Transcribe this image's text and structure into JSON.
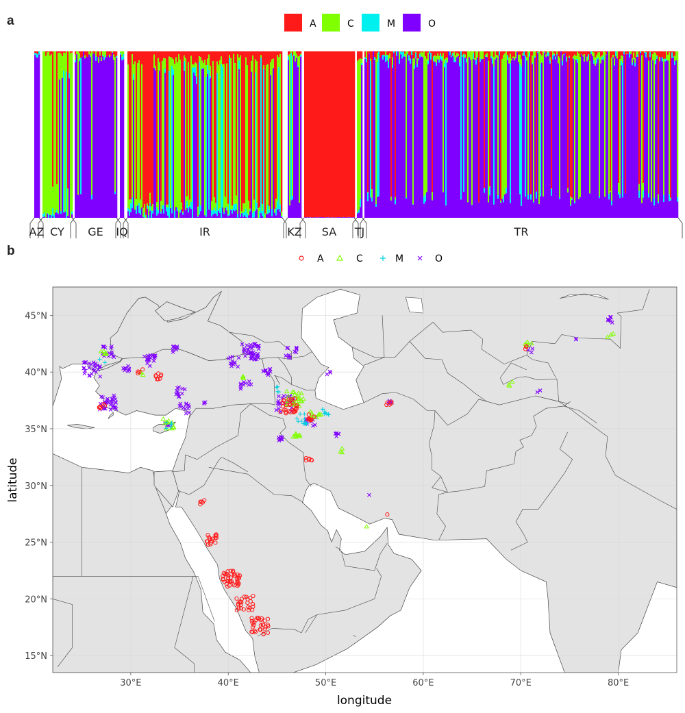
{
  "panel_a": {
    "letter": "a",
    "legend": [
      {
        "label": "A",
        "color": "#ff1a1a"
      },
      {
        "label": "C",
        "color": "#80ff00"
      },
      {
        "label": "M",
        "color": "#00f0f0"
      },
      {
        "label": "O",
        "color": "#8000ff"
      }
    ],
    "groups": [
      {
        "label": "AZ",
        "dominant": "O",
        "mix": {
          "A": 0.02,
          "C": 0.05,
          "M": 0.03,
          "O": 0.9
        }
      },
      {
        "label": "CY",
        "dominant": "C",
        "mix": {
          "A": 0.05,
          "C": 0.8,
          "M": 0.05,
          "O": 0.1
        }
      },
      {
        "label": "GE",
        "dominant": "O",
        "mix": {
          "A": 0.08,
          "C": 0.05,
          "M": 0.02,
          "O": 0.85
        }
      },
      {
        "label": "IQ",
        "dominant": "O",
        "mix": {
          "A": 0.1,
          "C": 0.05,
          "M": 0.05,
          "O": 0.8
        }
      },
      {
        "label": "IR",
        "dominant": "mixed",
        "mix": {
          "A": 0.35,
          "C": 0.3,
          "M": 0.15,
          "O": 0.2
        }
      },
      {
        "label": "KZ",
        "dominant": "O",
        "mix": {
          "A": 0.05,
          "C": 0.25,
          "M": 0.05,
          "O": 0.65
        }
      },
      {
        "label": "SA",
        "dominant": "A",
        "mix": {
          "A": 0.98,
          "C": 0.0,
          "M": 0.0,
          "O": 0.02
        }
      },
      {
        "label": "TJ",
        "dominant": "mixed",
        "mix": {
          "A": 0.3,
          "C": 0.3,
          "M": 0.1,
          "O": 0.3
        }
      },
      {
        "label": "TR",
        "dominant": "O",
        "mix": {
          "A": 0.1,
          "C": 0.15,
          "M": 0.05,
          "O": 0.7
        }
      }
    ]
  },
  "panel_b": {
    "letter": "b",
    "legend": [
      {
        "label": "A",
        "symbol": "circle",
        "color": "#ff1a1a"
      },
      {
        "label": "C",
        "symbol": "triangle",
        "color": "#80ff00"
      },
      {
        "label": "M",
        "symbol": "plus",
        "color": "#00d0e0"
      },
      {
        "label": "O",
        "symbol": "cross",
        "color": "#8000ff"
      }
    ]
  },
  "chart_data": [
    {
      "type": "bar",
      "subtype": "stacked ancestry proportions per individual",
      "categories": [
        "AZ",
        "CY",
        "GE",
        "IQ",
        "IR",
        "KZ",
        "SA",
        "TJ",
        "TR"
      ],
      "series_names": [
        "A",
        "C",
        "M",
        "O"
      ],
      "ylim": [
        0,
        1
      ],
      "legend_position": "top"
    },
    {
      "type": "scatter",
      "title": "",
      "xlabel": "longitude",
      "ylabel": "latitude",
      "xlim": [
        22,
        86
      ],
      "ylim": [
        13.5,
        47.5
      ],
      "x_ticks": [
        "30°E",
        "40°E",
        "50°E",
        "60°E",
        "70°E",
        "80°E"
      ],
      "x_tick_values": [
        30,
        40,
        50,
        60,
        70,
        80
      ],
      "y_ticks": [
        "15°N",
        "20°N",
        "25°N",
        "30°N",
        "35°N",
        "40°N",
        "45°N"
      ],
      "y_tick_values": [
        15,
        20,
        25,
        30,
        35,
        40,
        45
      ],
      "grid": true,
      "legend_position": "top",
      "series": [
        {
          "name": "A",
          "clusters": [
            {
              "lon": 27.0,
              "lat": 37.0,
              "n": 6
            },
            {
              "lon": 32.8,
              "lat": 39.6,
              "n": 8
            },
            {
              "lon": 31.0,
              "lat": 40.0,
              "n": 4
            },
            {
              "lon": 46.2,
              "lat": 37.0,
              "n": 30
            },
            {
              "lon": 48.5,
              "lat": 36.0,
              "n": 8
            },
            {
              "lon": 48.3,
              "lat": 32.3,
              "n": 6
            },
            {
              "lon": 56.4,
              "lat": 37.3,
              "n": 5
            },
            {
              "lon": 56.2,
              "lat": 27.5,
              "n": 1
            },
            {
              "lon": 70.3,
              "lat": 42.1,
              "n": 3
            },
            {
              "lon": 37.3,
              "lat": 28.6,
              "n": 5
            },
            {
              "lon": 38.3,
              "lat": 25.2,
              "n": 18
            },
            {
              "lon": 40.3,
              "lat": 21.8,
              "n": 40
            },
            {
              "lon": 41.7,
              "lat": 19.6,
              "n": 25
            },
            {
              "lon": 43.2,
              "lat": 17.6,
              "n": 30
            }
          ]
        },
        {
          "name": "C",
          "clusters": [
            {
              "lon": 27.3,
              "lat": 41.8,
              "n": 5
            },
            {
              "lon": 31.0,
              "lat": 40.0,
              "n": 3
            },
            {
              "lon": 33.8,
              "lat": 35.4,
              "n": 10
            },
            {
              "lon": 46.8,
              "lat": 37.6,
              "n": 25
            },
            {
              "lon": 49.0,
              "lat": 36.2,
              "n": 10
            },
            {
              "lon": 47.0,
              "lat": 34.3,
              "n": 8
            },
            {
              "lon": 51.5,
              "lat": 33.0,
              "n": 3
            },
            {
              "lon": 54.2,
              "lat": 26.2,
              "n": 1
            },
            {
              "lon": 70.8,
              "lat": 42.5,
              "n": 5
            },
            {
              "lon": 69.0,
              "lat": 38.9,
              "n": 3
            },
            {
              "lon": 79.2,
              "lat": 43.3,
              "n": 3
            },
            {
              "lon": 41.4,
              "lat": 39.5,
              "n": 3
            }
          ]
        },
        {
          "name": "M",
          "clusters": [
            {
              "lon": 33.9,
              "lat": 35.3,
              "n": 5
            },
            {
              "lon": 47.5,
              "lat": 35.9,
              "n": 12
            },
            {
              "lon": 50.0,
              "lat": 36.5,
              "n": 8
            },
            {
              "lon": 45.3,
              "lat": 38.5,
              "n": 4
            },
            {
              "lon": 27.0,
              "lat": 41.0,
              "n": 2
            }
          ]
        },
        {
          "name": "O",
          "clusters": [
            {
              "lon": 26.0,
              "lat": 40.2,
              "n": 25
            },
            {
              "lon": 27.7,
              "lat": 41.8,
              "n": 15
            },
            {
              "lon": 27.6,
              "lat": 37.3,
              "n": 30
            },
            {
              "lon": 29.5,
              "lat": 40.3,
              "n": 8
            },
            {
              "lon": 32.0,
              "lat": 41.0,
              "n": 20
            },
            {
              "lon": 34.6,
              "lat": 42.0,
              "n": 8
            },
            {
              "lon": 35.2,
              "lat": 38.2,
              "n": 12
            },
            {
              "lon": 35.5,
              "lat": 36.8,
              "n": 12
            },
            {
              "lon": 33.8,
              "lat": 35.3,
              "n": 6
            },
            {
              "lon": 40.5,
              "lat": 40.9,
              "n": 12
            },
            {
              "lon": 42.3,
              "lat": 41.8,
              "n": 40
            },
            {
              "lon": 41.8,
              "lat": 38.7,
              "n": 10
            },
            {
              "lon": 44.0,
              "lat": 40.2,
              "n": 10
            },
            {
              "lon": 46.5,
              "lat": 41.7,
              "n": 12
            },
            {
              "lon": 45.8,
              "lat": 37.2,
              "n": 25
            },
            {
              "lon": 45.2,
              "lat": 34.2,
              "n": 8
            },
            {
              "lon": 48.5,
              "lat": 35.5,
              "n": 10
            },
            {
              "lon": 51.0,
              "lat": 34.5,
              "n": 6
            },
            {
              "lon": 50.3,
              "lat": 40.0,
              "n": 3
            },
            {
              "lon": 56.5,
              "lat": 37.4,
              "n": 5
            },
            {
              "lon": 54.4,
              "lat": 29.0,
              "n": 1
            },
            {
              "lon": 71.0,
              "lat": 42.0,
              "n": 4
            },
            {
              "lon": 72.0,
              "lat": 38.5,
              "n": 2
            },
            {
              "lon": 79.3,
              "lat": 44.6,
              "n": 8
            },
            {
              "lon": 76.0,
              "lat": 42.8,
              "n": 2
            },
            {
              "lon": 37.5,
              "lat": 37.4,
              "n": 3
            }
          ]
        }
      ]
    }
  ]
}
